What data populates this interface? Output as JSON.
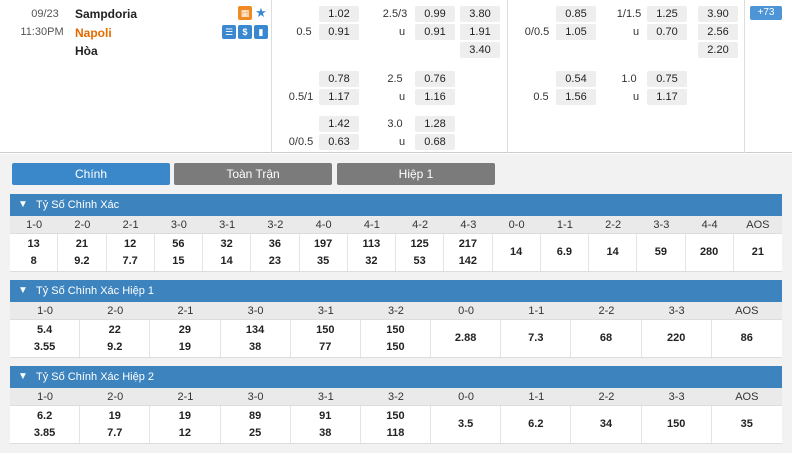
{
  "match": {
    "date": "09/23",
    "time": "11:30PM",
    "home_team": "Sampdoria",
    "away_team": "Napoli",
    "draw_label": "Hòa",
    "more_label": "+73",
    "icons": [
      "live-icon",
      "star-icon",
      "stats-icon",
      "money-icon",
      "chart-icon"
    ]
  },
  "odds": {
    "ft_row1": {
      "h1": "1.02",
      "line": "2.5/3",
      "o1": "0.99",
      "x": "3.80"
    },
    "ft_row2": {
      "hcap": "0.5",
      "a1": "0.91",
      "u": "u",
      "u1": "0.91",
      "x": "1.91"
    },
    "ft_row3": {
      "x": "3.40"
    },
    "ft_row4": {
      "h1": "0.78",
      "line": "2.5",
      "o1": "0.76"
    },
    "ft_row5": {
      "hcap": "0.5/1",
      "a1": "1.17",
      "u": "u",
      "u1": "1.16"
    },
    "ft_row6": {
      "h1": "1.42",
      "line": "3.0",
      "o1": "1.28"
    },
    "ft_row7": {
      "hcap": "0/0.5",
      "a1": "0.63",
      "u": "u",
      "u1": "0.68"
    },
    "ht_row1": {
      "h1": "0.85",
      "line": "1/1.5",
      "o1": "1.25",
      "x": "3.90"
    },
    "ht_row2": {
      "hcap": "0/0.5",
      "a1": "1.05",
      "u": "u",
      "u1": "0.70",
      "x": "2.56"
    },
    "ht_row3": {
      "x": "2.20"
    },
    "ht_row4": {
      "h1": "0.54",
      "line": "1.0",
      "o1": "0.75"
    },
    "ht_row5": {
      "hcap": "0.5",
      "a1": "1.56",
      "u": "u",
      "u1": "1.17"
    }
  },
  "tabs": [
    {
      "label": "Chính",
      "active": true
    },
    {
      "label": "Toàn Trận",
      "active": false
    },
    {
      "label": "Hiệp 1",
      "active": false
    }
  ],
  "sections": [
    {
      "title": "Tỷ Số Chính Xác",
      "headers": [
        "1-0",
        "2-0",
        "2-1",
        "3-0",
        "3-1",
        "3-2",
        "4-0",
        "4-1",
        "4-2",
        "4-3",
        "0-0",
        "1-1",
        "2-2",
        "3-3",
        "4-4",
        "AOS"
      ],
      "home": [
        "13",
        "21",
        "12",
        "56",
        "32",
        "36",
        "197",
        "113",
        "125",
        "217"
      ],
      "away": [
        "8",
        "9.2",
        "7.7",
        "15",
        "14",
        "23",
        "35",
        "32",
        "53",
        "142"
      ],
      "draws": [
        "14",
        "6.9",
        "14",
        "59",
        "280",
        "21"
      ]
    },
    {
      "title": "Tỷ Số Chính Xác Hiệp 1",
      "headers": [
        "1-0",
        "2-0",
        "2-1",
        "3-0",
        "3-1",
        "3-2",
        "0-0",
        "1-1",
        "2-2",
        "3-3",
        "AOS"
      ],
      "home": [
        "5.4",
        "22",
        "29",
        "134",
        "150",
        "150"
      ],
      "away": [
        "3.55",
        "9.2",
        "19",
        "38",
        "77",
        "150"
      ],
      "draws": [
        "2.88",
        "7.3",
        "68",
        "220",
        "86"
      ]
    },
    {
      "title": "Tỷ Số Chính Xác Hiệp 2",
      "headers": [
        "1-0",
        "2-0",
        "2-1",
        "3-0",
        "3-1",
        "3-2",
        "0-0",
        "1-1",
        "2-2",
        "3-3",
        "AOS"
      ],
      "home": [
        "6.2",
        "19",
        "19",
        "89",
        "91",
        "150"
      ],
      "away": [
        "3.85",
        "7.7",
        "12",
        "25",
        "38",
        "118"
      ],
      "draws": [
        "3.5",
        "6.2",
        "34",
        "150",
        "35"
      ]
    }
  ]
}
